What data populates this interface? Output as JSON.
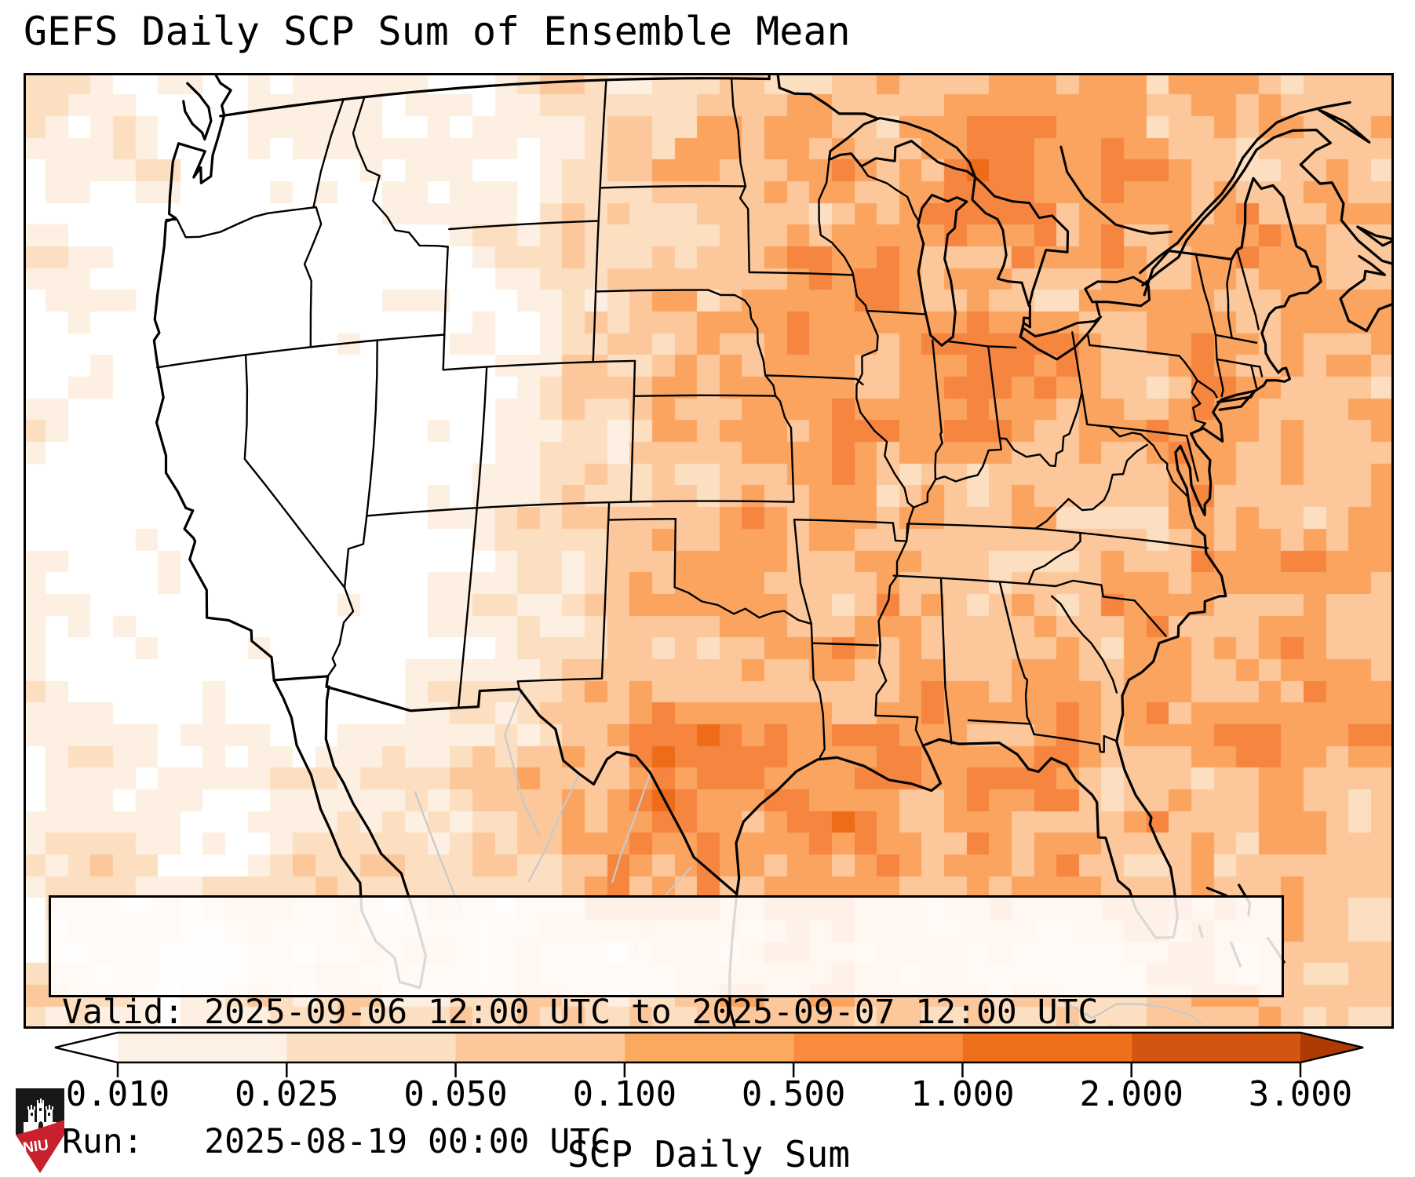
{
  "title": "GEFS Daily SCP Sum of Ensemble Mean",
  "info_box": {
    "line1": "Valid: 2025-09-06 12:00 UTC to 2025-09-07 12:00 UTC",
    "line2": "Run:   2025-08-19 00:00 UTC"
  },
  "colorbar": {
    "label": "SCP Daily Sum",
    "tick_labels": [
      "0.010",
      "0.025",
      "0.050",
      "0.100",
      "0.500",
      "1.000",
      "2.000",
      "3.000"
    ],
    "segment_colors": [
      "#fdf0e4",
      "#fcdfc1",
      "#fcc89b",
      "#fba95f",
      "#fa8b3c",
      "#f06f1b",
      "#d4550f"
    ],
    "under_color": "#ffffff",
    "over_color": "#ae3a04",
    "outline_color": "#000000"
  },
  "map": {
    "heat_palette": [
      "#ffffff",
      "#fdefe1",
      "#fcdfc1",
      "#fcc79b",
      "#faa45f",
      "#f5853f",
      "#ee6c18"
    ],
    "border_color": "#000000",
    "neighbor_color": "#c9c9c9"
  },
  "logo": {
    "text": "NIU",
    "shield_color": "#181818",
    "band_color": "#c8202e",
    "text_color": "#ffffff",
    "castle_color": "#ffffff"
  },
  "chart_data": {
    "type": "heatmap",
    "title": "GEFS Daily SCP Sum of Ensemble Mean",
    "variable": "SCP Daily Sum",
    "valid": "2025-09-06 12:00 UTC to 2025-09-07 12:00 UTC",
    "run": "2025-08-19 00:00 UTC",
    "region": "Contiguous United States and surroundings",
    "scale_boundaries": [
      0.01,
      0.025,
      0.05,
      0.1,
      0.5,
      1.0,
      2.0,
      3.0
    ],
    "scale_type": "discrete sequential oranges, extended with arrows on both ends",
    "legend_position": "bottom horizontal colorbar",
    "pattern_summary": "near-zero (white) over the far West, light values over the Plains and Canada, moderate values over the Midwest / Ohio Valley / St. Lawrence, highest broad values over the Gulf of Mexico, western Atlantic and Texas coast"
  }
}
